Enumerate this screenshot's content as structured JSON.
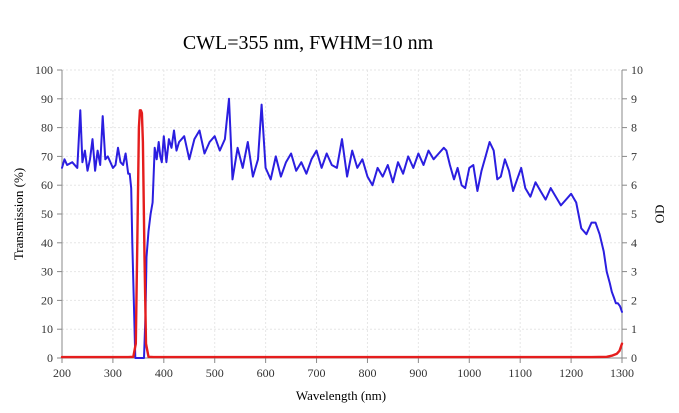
{
  "chart_data": {
    "type": "line",
    "title": "CWL=355 nm, FWHM=10 nm",
    "xlabel": "Wavelength (nm)",
    "ylabel": "Transmission (%)",
    "y2label": "OD",
    "xlim": [
      200,
      1300
    ],
    "ylim": [
      0,
      100
    ],
    "y2lim": [
      0,
      10
    ],
    "xticks": [
      200,
      300,
      400,
      500,
      600,
      700,
      800,
      900,
      1000,
      1100,
      1200,
      1300
    ],
    "yticks": [
      0,
      10,
      20,
      30,
      40,
      50,
      60,
      70,
      80,
      90,
      100
    ],
    "y2ticks": [
      0,
      1,
      2,
      3,
      4,
      5,
      6,
      7,
      8,
      9,
      10
    ],
    "grid": true,
    "series": [
      {
        "name": "OD",
        "axis": "right",
        "color": "#2b1ee0",
        "x": [
          200,
          205,
          210,
          220,
          230,
          236,
          240,
          245,
          250,
          255,
          260,
          265,
          270,
          275,
          280,
          285,
          290,
          300,
          305,
          310,
          315,
          320,
          325,
          330,
          333,
          336,
          338,
          341,
          344,
          347,
          350,
          352,
          355,
          358,
          361,
          364,
          366,
          370,
          374,
          378,
          382,
          386,
          390,
          393,
          396,
          400,
          405,
          410,
          415,
          420,
          425,
          430,
          440,
          450,
          460,
          470,
          480,
          490,
          500,
          510,
          520,
          528,
          535,
          545,
          555,
          565,
          575,
          585,
          592,
          600,
          610,
          620,
          630,
          640,
          650,
          660,
          670,
          680,
          690,
          700,
          710,
          720,
          730,
          740,
          750,
          760,
          770,
          780,
          790,
          800,
          810,
          820,
          830,
          840,
          850,
          860,
          870,
          880,
          890,
          900,
          910,
          920,
          930,
          940,
          950,
          955,
          962,
          970,
          977,
          985,
          992,
          1000,
          1008,
          1016,
          1024,
          1032,
          1040,
          1048,
          1055,
          1062,
          1070,
          1078,
          1086,
          1094,
          1102,
          1110,
          1120,
          1130,
          1140,
          1150,
          1160,
          1170,
          1180,
          1190,
          1200,
          1210,
          1220,
          1230,
          1240,
          1248,
          1256,
          1264,
          1270,
          1276,
          1280,
          1284,
          1288,
          1292,
          1296,
          1300
        ],
        "values": [
          6.6,
          6.9,
          6.7,
          6.8,
          6.6,
          8.6,
          6.8,
          7.2,
          6.5,
          6.9,
          7.6,
          6.5,
          7.2,
          6.7,
          8.4,
          6.9,
          7.0,
          6.6,
          6.7,
          7.3,
          6.8,
          6.7,
          7.1,
          6.4,
          6.4,
          5.9,
          4.0,
          2.0,
          0.0,
          0.0,
          0.0,
          0.0,
          0.0,
          0.0,
          0.0,
          1.5,
          3.5,
          4.4,
          5.0,
          5.4,
          7.3,
          6.9,
          7.5,
          7.0,
          6.8,
          7.7,
          6.8,
          7.6,
          7.3,
          7.9,
          7.2,
          7.5,
          7.7,
          6.9,
          7.6,
          7.9,
          7.1,
          7.5,
          7.7,
          7.2,
          7.6,
          9.0,
          6.2,
          7.3,
          6.6,
          7.5,
          6.3,
          6.9,
          8.8,
          6.6,
          6.2,
          7.0,
          6.3,
          6.8,
          7.1,
          6.5,
          6.8,
          6.4,
          6.9,
          7.2,
          6.6,
          7.1,
          6.7,
          6.6,
          7.6,
          6.3,
          7.2,
          6.6,
          6.9,
          6.3,
          6.0,
          6.6,
          6.3,
          6.7,
          6.1,
          6.8,
          6.4,
          7.0,
          6.6,
          7.1,
          6.7,
          7.2,
          6.9,
          7.1,
          7.3,
          7.2,
          6.7,
          6.2,
          6.6,
          6.0,
          5.9,
          6.6,
          6.7,
          5.8,
          6.5,
          7.0,
          7.5,
          7.2,
          6.2,
          6.3,
          6.9,
          6.5,
          5.8,
          6.2,
          6.6,
          5.9,
          5.6,
          6.1,
          5.8,
          5.5,
          5.9,
          5.6,
          5.3,
          5.5,
          5.7,
          5.4,
          4.5,
          4.3,
          4.7,
          4.7,
          4.3,
          3.7,
          3.0,
          2.6,
          2.3,
          2.1,
          1.9,
          1.9,
          1.8,
          1.6
        ]
      },
      {
        "name": "Transmission",
        "axis": "left",
        "color": "#e51d1d",
        "x": [
          200,
          330,
          340,
          345,
          348,
          351,
          353,
          355,
          357,
          359,
          362,
          365,
          370,
          380,
          1240,
          1270,
          1280,
          1290,
          1295,
          1300
        ],
        "values": [
          0.3,
          0.3,
          0.4,
          5,
          40,
          80,
          86,
          86,
          85,
          75,
          35,
          5,
          0.4,
          0.3,
          0.3,
          0.4,
          0.8,
          1.5,
          2.5,
          5
        ]
      }
    ]
  }
}
